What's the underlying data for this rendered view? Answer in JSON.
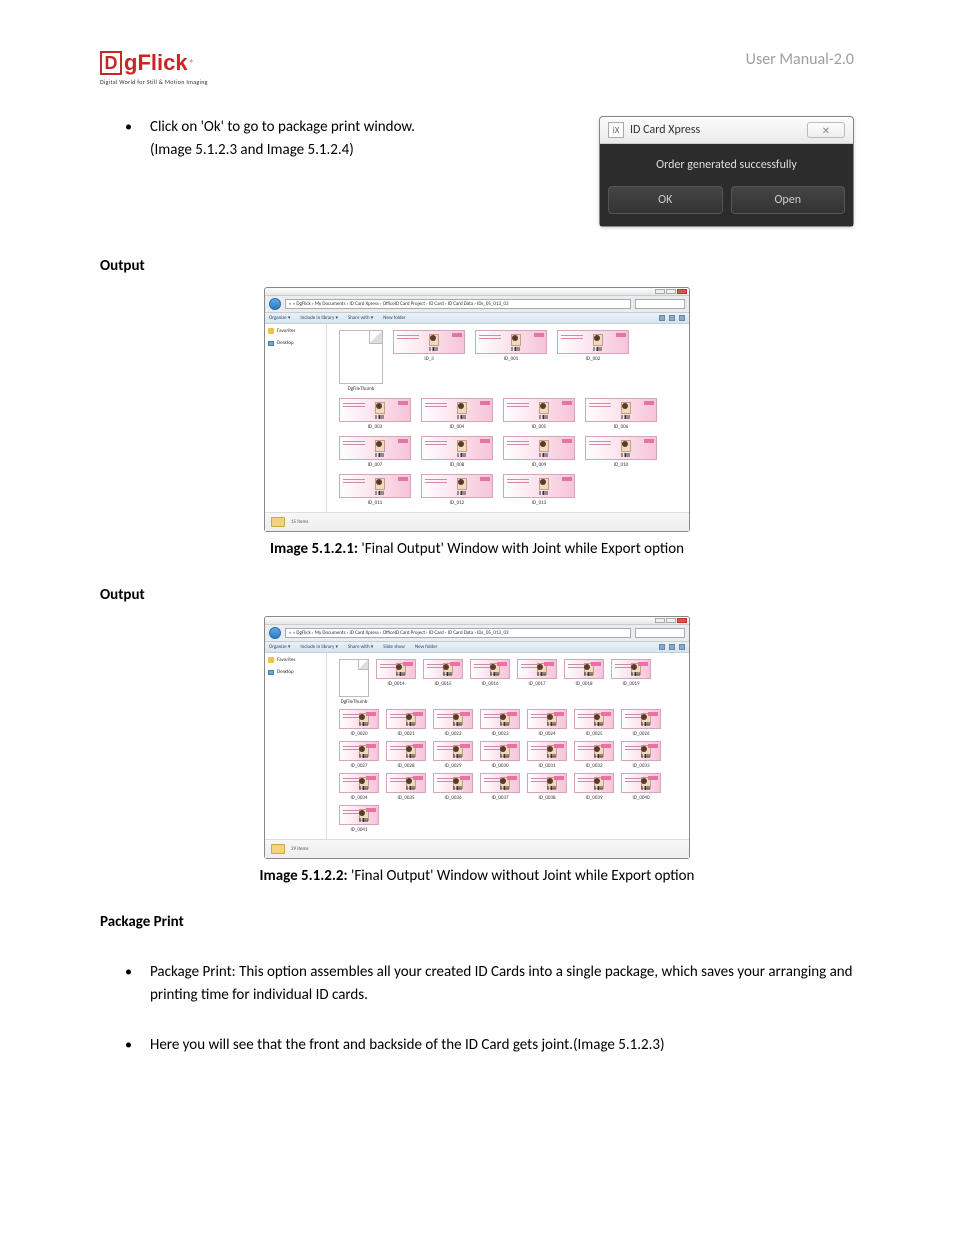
{
  "header": {
    "logo_d": "D",
    "logo_text": "gFlick",
    "logo_r": "®",
    "logo_tagline": "Digital World for Still & Motion Imaging",
    "manual_title": "User Manual-2.0"
  },
  "intro_bullet": {
    "line1": "Click on 'Ok' to go to package print window.",
    "line2": "(Image 5.1.2.3  and Image 5.1.2.4)"
  },
  "dialog": {
    "title": "ID Card Xpress",
    "close_glyph": "✕",
    "message": "Order generated successfully",
    "ok_label": "OK",
    "open_label": "Open",
    "icon_text": "iX"
  },
  "section1": {
    "heading": "Output",
    "caption_label": "Image 5.1.2.1:",
    "caption_text": " 'Final Output' Window with Joint while Export option",
    "explorer": {
      "breadcrumb": "« » DgFlick › My Documents › ID Card Xpress › OfficeID Card Project › ID Card › ID Card Data › IDs_05_013_03",
      "toolbar": {
        "organize": "Organize ▾",
        "include": "Include in library ▾",
        "share": "Share with ▾",
        "new": "New folder"
      },
      "toolbar_icons": [
        "≡",
        "▾",
        "▢",
        "?"
      ],
      "sidebar": {
        "fav": "Favorites",
        "desk": "Desktop"
      },
      "blank_file": "DgFileThumb",
      "items": [
        "ID_3",
        "ID_001",
        "ID_002",
        "ID_003",
        "ID_004",
        "ID_005",
        "ID_006",
        "ID_007",
        "ID_008",
        "ID_009",
        "ID_010",
        "ID_011",
        "ID_012",
        "ID_013"
      ],
      "status_count": "15 items"
    }
  },
  "section2": {
    "heading": "Output",
    "caption_label": "Image 5.1.2.2:",
    "caption_text": " 'Final Output' Window without Joint while Export option",
    "explorer": {
      "breadcrumb": "« » DgFlick › My Documents › ID Card Xpress › OfficeID Card Project › ID Card › ID Card Data › IDs_05_013_03",
      "toolbar": {
        "organize": "Organize ▾",
        "include": "Include in library ▾",
        "share": "Share with ▾",
        "slide": "Slide show",
        "new": "New folder"
      },
      "toolbar_icons": [
        "≡",
        "▾",
        "▢",
        "?"
      ],
      "sidebar": {
        "fav": "Favorites",
        "desk": "Desktop"
      },
      "blank_file": "DgFileThumb",
      "items": [
        "ID_0014",
        "ID_0015",
        "ID_0016",
        "ID_0017",
        "ID_0018",
        "ID_0019",
        "ID_0020",
        "ID_0021",
        "ID_0022",
        "ID_0023",
        "ID_0024",
        "ID_0025",
        "ID_0026",
        "ID_0027",
        "ID_0028",
        "ID_0029",
        "ID_0030",
        "ID_0031",
        "ID_0032",
        "ID_0033",
        "ID_0034",
        "ID_0035",
        "ID_0036",
        "ID_0037",
        "ID_0038",
        "ID_0039",
        "ID_0040",
        "ID_0041"
      ],
      "status_count": "29 items"
    }
  },
  "section3": {
    "heading": "Package Print",
    "bullet1": "Package Print: This option assembles all your created ID Cards into a single package, which saves your arranging and printing time for individual ID cards.",
    "bullet2": "Here you will see that the front and backside of the ID Card gets joint.(Image 5.1.2.3)"
  },
  "colors": {
    "logo_red": "#c62828",
    "header_grey": "#9e9e9e",
    "card_pink_light": "#fce7f0",
    "card_pink_dark": "#f7c4d9"
  }
}
